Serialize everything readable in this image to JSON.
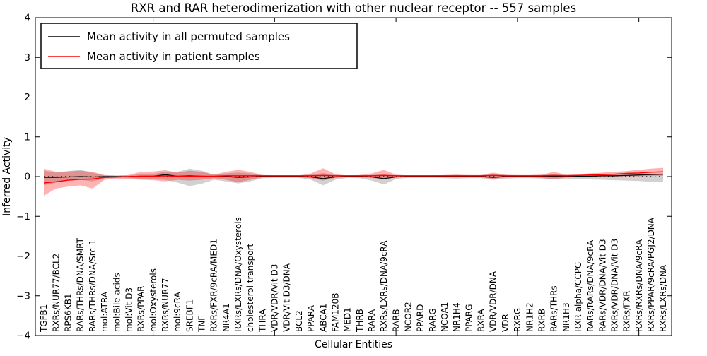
{
  "figure": {
    "background": "#ffffff",
    "accent_red": "#ff0000",
    "accent_black": "#000000"
  },
  "chart_data": {
    "type": "line",
    "title": "RXR and RAR heterodimerization with other nuclear receptor -- 557 samples",
    "xlabel": "Cellular Entities",
    "ylabel": "Inferred Activity",
    "ylim": [
      -4,
      4
    ],
    "yticks": [
      4,
      3,
      2,
      1,
      0,
      -1,
      -2,
      -3,
      -4
    ],
    "xtick_indices": [
      9,
      19,
      29,
      39,
      49
    ],
    "grid": false,
    "legend_position": "upper left",
    "zero_line": true,
    "categories": [
      "TGFB1",
      "RXRs/NUR77/BCL2",
      "RPS6KB1",
      "RARs/THRs/DNA/SMRT",
      "RARs/THRs/DNA/Src-1",
      "mol:ATRA",
      "mol:Bile acids",
      "mol:Vit D3",
      "RXRs/PPAR",
      "mol:Oxysterols",
      "RXRs/NUR77",
      "mol:9cRA",
      "SREBF1",
      "TNF",
      "RXRs/FXR/9cRA/MED1",
      "NR4A1",
      "RXRs/LXRs/DNA/Oxysterols",
      "cholesterol transport",
      "THRA",
      "VDR/VDR/Vit D3",
      "VDR/Vit D3/DNA",
      "BCL2",
      "PPARA",
      "ABCA1",
      "FAM120B",
      "MED1",
      "THRB",
      "RARA",
      "RXRs/LXRs/DNA/9cRA",
      "RARB",
      "NCOR2",
      "PPARD",
      "RARG",
      "NCOA1",
      "NR1H4",
      "PPARG",
      "RXRA",
      "VDR/VDR/DNA",
      "VDR",
      "RXRG",
      "NR1H2",
      "RXRB",
      "RARs/THRs",
      "NR1H3",
      "RXR alpha/CCPG",
      "RARs/RARs/DNA/9cRA",
      "RARs/VDR/DNA/Vit D3",
      "RXRs/VDR/DNA/Vit D3",
      "RXRs/FXR",
      "RXRs/RXRs/DNA/9cRA",
      "RXRs/PPAR/9cRA/PGJ2/DNA",
      "RXRs/LXRs/DNA"
    ],
    "series": [
      {
        "name": "Mean activity in all permuted samples",
        "color": "#000000",
        "width": 1.2,
        "values": [
          -0.02,
          -0.02,
          -0.01,
          0,
          -0.01,
          0,
          0,
          0,
          0.01,
          0.01,
          0.05,
          0.01,
          0.02,
          0.01,
          0,
          0,
          -0.02,
          -0.01,
          0,
          0,
          0,
          0,
          -0.01,
          -0.05,
          -0.01,
          0,
          0,
          -0.01,
          -0.05,
          -0.01,
          0,
          0,
          0,
          0,
          0,
          0,
          0,
          -0.02,
          0,
          0,
          0,
          0,
          0.01,
          0,
          0.01,
          0.01,
          0.02,
          0.02,
          0.03,
          0.04,
          0.05,
          0.06
        ]
      },
      {
        "name": "Mean activity in patient samples",
        "color": "#ff0000",
        "width": 1.5,
        "values": [
          -0.16,
          -0.13,
          -0.09,
          -0.07,
          -0.06,
          -0.02,
          -0.01,
          0,
          0.01,
          0.01,
          0.02,
          0.01,
          0.01,
          0.01,
          0.01,
          0.02,
          0.02,
          0.02,
          0.02,
          0.02,
          0.02,
          0.02,
          0.02,
          0.03,
          0.02,
          0.02,
          0.02,
          0.02,
          0.03,
          0.02,
          0.02,
          0.02,
          0.02,
          0.02,
          0.02,
          0.02,
          0.02,
          0.03,
          0.02,
          0.02,
          0.02,
          0.02,
          0.03,
          0.02,
          0.03,
          0.04,
          0.05,
          0.06,
          0.08,
          0.09,
          0.11,
          0.12
        ]
      }
    ],
    "bands": [
      {
        "name": "permuted-std-band",
        "color": "#000000",
        "opacity": 0.18,
        "upper": [
          0.15,
          0.1,
          0.14,
          0.17,
          0.1,
          0.03,
          0.02,
          0.03,
          0.06,
          0.07,
          0.12,
          0.12,
          0.2,
          0.15,
          0.05,
          0.08,
          0.1,
          0.08,
          0.03,
          0.02,
          0.02,
          0.02,
          0.05,
          0.09,
          0.04,
          0.02,
          0.02,
          0.04,
          0.06,
          0.03,
          0.02,
          0.02,
          0.02,
          0.03,
          0.04,
          0.03,
          0.03,
          0.06,
          0.04,
          0.03,
          0.03,
          0.04,
          0.06,
          0.04,
          0.04,
          0.05,
          0.05,
          0.06,
          0.06,
          0.07,
          0.07,
          0.08
        ],
        "lower": [
          -0.22,
          -0.15,
          -0.1,
          -0.08,
          -0.12,
          -0.04,
          -0.03,
          -0.03,
          -0.06,
          -0.07,
          -0.08,
          -0.15,
          -0.24,
          -0.18,
          -0.08,
          -0.12,
          -0.17,
          -0.12,
          -0.04,
          -0.03,
          -0.03,
          -0.03,
          -0.08,
          -0.22,
          -0.08,
          -0.03,
          -0.04,
          -0.1,
          -0.2,
          -0.06,
          -0.03,
          -0.03,
          -0.03,
          -0.04,
          -0.05,
          -0.04,
          -0.04,
          -0.08,
          -0.05,
          -0.04,
          -0.04,
          -0.05,
          -0.07,
          -0.05,
          -0.06,
          -0.07,
          -0.08,
          -0.09,
          -0.1,
          -0.11,
          -0.13,
          -0.14
        ]
      },
      {
        "name": "patient-std-band",
        "color": "#ff0000",
        "opacity": 0.3,
        "upper": [
          0.2,
          0.12,
          0.13,
          0.15,
          0.12,
          0.04,
          0.03,
          0.04,
          0.12,
          0.13,
          0.16,
          0.1,
          0.15,
          0.12,
          0.05,
          0.12,
          0.17,
          0.12,
          0.04,
          0.03,
          0.03,
          0.03,
          0.08,
          0.21,
          0.06,
          0.03,
          0.04,
          0.08,
          0.17,
          0.05,
          0.03,
          0.03,
          0.03,
          0.04,
          0.05,
          0.04,
          0.04,
          0.1,
          0.05,
          0.04,
          0.04,
          0.05,
          0.12,
          0.05,
          0.06,
          0.08,
          0.1,
          0.12,
          0.14,
          0.17,
          0.2,
          0.22
        ],
        "lower": [
          -0.48,
          -0.3,
          -0.25,
          -0.22,
          -0.3,
          -0.08,
          -0.05,
          -0.06,
          -0.08,
          -0.09,
          -0.12,
          -0.08,
          -0.1,
          -0.08,
          -0.04,
          -0.08,
          -0.14,
          -0.08,
          -0.02,
          -0.01,
          -0.01,
          -0.02,
          -0.04,
          -0.1,
          -0.03,
          -0.01,
          -0.02,
          -0.03,
          -0.07,
          -0.02,
          -0.01,
          -0.01,
          -0.01,
          -0.02,
          -0.02,
          -0.02,
          -0.02,
          -0.06,
          -0.02,
          -0.02,
          -0.02,
          -0.03,
          -0.07,
          -0.02,
          -0.02,
          -0.02,
          -0.01,
          0.0,
          0.01,
          0.01,
          0.02,
          0.02
        ]
      }
    ]
  }
}
